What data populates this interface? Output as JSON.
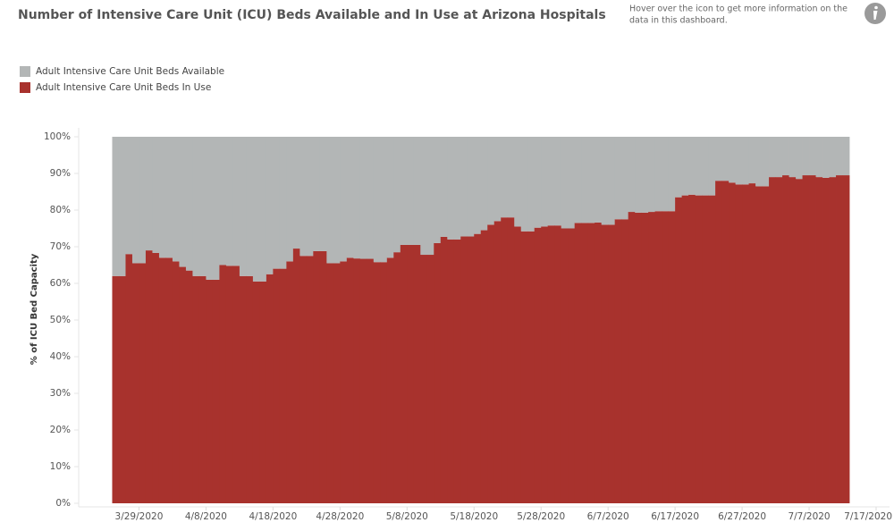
{
  "chart_data": {
    "type": "stacked-bar",
    "title": "Number of Intensive Care Unit (ICU) Beds Available and In Use at Arizona Hospitals",
    "note": [
      "Hover over the icon to get more information on the",
      "data in this dashboard."
    ],
    "y_label": "% of ICU Bed Capacity",
    "legend": "top-left",
    "grid": false,
    "x": [
      "3/25/2020",
      "3/26/2020",
      "3/27/2020",
      "3/28/2020",
      "3/29/2020",
      "3/30/2020",
      "3/31/2020",
      "4/1/2020",
      "4/2/2020",
      "4/3/2020",
      "4/4/2020",
      "4/5/2020",
      "4/6/2020",
      "4/7/2020",
      "4/8/2020",
      "4/9/2020",
      "4/10/2020",
      "4/11/2020",
      "4/12/2020",
      "4/13/2020",
      "4/14/2020",
      "4/15/2020",
      "4/16/2020",
      "4/17/2020",
      "4/18/2020",
      "4/19/2020",
      "4/20/2020",
      "4/21/2020",
      "4/22/2020",
      "4/23/2020",
      "4/24/2020",
      "4/25/2020",
      "4/26/2020",
      "4/27/2020",
      "4/28/2020",
      "4/29/2020",
      "4/30/2020",
      "5/1/2020",
      "5/2/2020",
      "5/3/2020",
      "5/4/2020",
      "5/5/2020",
      "5/6/2020",
      "5/7/2020",
      "5/8/2020",
      "5/9/2020",
      "5/10/2020",
      "5/11/2020",
      "5/12/2020",
      "5/13/2020",
      "5/14/2020",
      "5/15/2020",
      "5/16/2020",
      "5/17/2020",
      "5/18/2020",
      "5/19/2020",
      "5/20/2020",
      "5/21/2020",
      "5/22/2020",
      "5/23/2020",
      "5/24/2020",
      "5/25/2020",
      "5/26/2020",
      "5/27/2020",
      "5/28/2020",
      "5/29/2020",
      "5/30/2020",
      "5/31/2020",
      "6/1/2020",
      "6/2/2020",
      "6/3/2020",
      "6/4/2020",
      "6/5/2020",
      "6/6/2020",
      "6/7/2020",
      "6/8/2020",
      "6/9/2020",
      "6/10/2020",
      "6/11/2020",
      "6/12/2020",
      "6/13/2020",
      "6/14/2020",
      "6/15/2020",
      "6/16/2020",
      "6/17/2020",
      "6/18/2020",
      "6/19/2020",
      "6/20/2020",
      "6/21/2020",
      "6/22/2020",
      "6/23/2020",
      "6/24/2020",
      "6/25/2020",
      "6/26/2020",
      "6/27/2020",
      "6/28/2020",
      "6/29/2020",
      "6/30/2020",
      "7/1/2020",
      "7/2/2020",
      "7/3/2020",
      "7/4/2020",
      "7/5/2020",
      "7/6/2020",
      "7/7/2020",
      "7/8/2020",
      "7/9/2020",
      "7/10/2020",
      "7/11/2020",
      "7/12/2020"
    ],
    "series": [
      {
        "name": "Adult Intensive Care Unit Beds Available",
        "color": "#b3b6b6",
        "values": [
          38,
          38,
          32,
          34.5,
          34.5,
          31,
          31.7,
          33,
          33,
          34,
          35.5,
          36.5,
          38,
          38,
          39,
          39,
          35,
          35.2,
          35.2,
          38,
          38,
          39.5,
          39.5,
          37.5,
          36,
          36,
          34,
          30.5,
          32.5,
          32.5,
          31.2,
          31.2,
          34.5,
          34.5,
          34,
          33,
          33.2,
          33.3,
          33.3,
          34.2,
          34.2,
          33,
          31.5,
          29.5,
          29.5,
          29.5,
          32.2,
          32.2,
          29,
          27.3,
          28,
          28,
          27.2,
          27.2,
          26.5,
          25.5,
          24,
          23,
          22,
          22,
          24.5,
          25.8,
          25.8,
          24.8,
          24.5,
          24.2,
          24.2,
          25,
          25,
          23.5,
          23.5,
          23.5,
          23.4,
          24,
          24,
          22.5,
          22.5,
          20.5,
          20.7,
          20.7,
          20.5,
          20.3,
          20.3,
          20.3,
          16.5,
          16,
          15.8,
          16,
          16,
          16,
          12,
          12,
          12.5,
          13,
          13,
          12.7,
          13.5,
          13.5,
          11,
          11,
          10.5,
          11,
          11.5,
          10.5,
          10.5,
          11,
          11.2,
          11,
          10.5,
          10.5
        ]
      },
      {
        "name": "Adult Intensive Care Unit Beds In Use",
        "color": "#a8322d",
        "values": [
          62,
          62,
          68,
          65.5,
          65.5,
          69,
          68.3,
          67,
          67,
          66,
          64.5,
          63.5,
          62,
          62,
          61,
          61,
          65,
          64.8,
          64.8,
          62,
          62,
          60.5,
          60.5,
          62.5,
          64,
          64,
          66,
          69.5,
          67.5,
          67.5,
          68.8,
          68.8,
          65.5,
          65.5,
          66,
          67,
          66.8,
          66.7,
          66.7,
          65.8,
          65.8,
          67,
          68.5,
          70.5,
          70.5,
          70.5,
          67.8,
          67.8,
          71,
          72.7,
          72,
          72,
          72.8,
          72.8,
          73.5,
          74.5,
          76,
          77,
          78,
          78,
          75.5,
          74.2,
          74.2,
          75.2,
          75.5,
          75.8,
          75.8,
          75,
          75,
          76.5,
          76.5,
          76.5,
          76.6,
          76,
          76,
          77.5,
          77.5,
          79.5,
          79.3,
          79.3,
          79.5,
          79.7,
          79.7,
          79.7,
          83.5,
          84,
          84.2,
          84,
          84,
          84,
          88,
          88,
          87.5,
          87,
          87,
          87.3,
          86.5,
          86.5,
          89,
          89,
          89.5,
          89,
          88.5,
          89.5,
          89.5,
          89,
          88.8,
          89,
          89.5,
          89.5
        ]
      }
    ],
    "xlim": [
      "3/20/2020",
      "7/19/2020"
    ],
    "xticks": [
      "3/29/2020",
      "4/8/2020",
      "4/18/2020",
      "4/28/2020",
      "5/8/2020",
      "5/18/2020",
      "5/28/2020",
      "6/7/2020",
      "6/17/2020",
      "6/27/2020",
      "7/7/2020",
      "7/17/2020"
    ],
    "ylim": [
      0,
      100
    ],
    "yticks": [
      {
        "value": 0,
        "label": "0%"
      },
      {
        "value": 10,
        "label": "10%"
      },
      {
        "value": 20,
        "label": "20%"
      },
      {
        "value": 30,
        "label": "30%"
      },
      {
        "value": 40,
        "label": "40%"
      },
      {
        "value": 50,
        "label": "50%"
      },
      {
        "value": 60,
        "label": "60%"
      },
      {
        "value": 70,
        "label": "70%"
      },
      {
        "value": 80,
        "label": "80%"
      },
      {
        "value": 90,
        "label": "90%"
      },
      {
        "value": 100,
        "label": "100%"
      }
    ]
  }
}
